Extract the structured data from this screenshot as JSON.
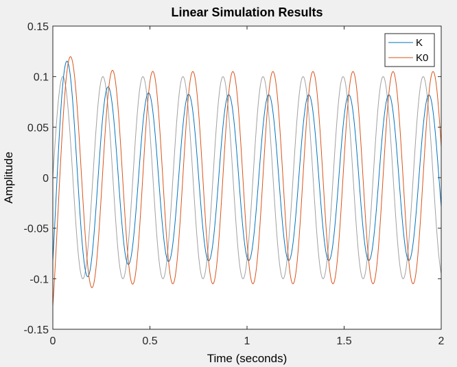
{
  "chart_data": {
    "type": "line",
    "title": "Linear Simulation Results",
    "xlabel": "Time (seconds)",
    "ylabel": "Amplitude",
    "xlim": [
      0,
      2
    ],
    "ylim": [
      -0.15,
      0.15
    ],
    "xticks": [
      0,
      0.5,
      1,
      1.5,
      2
    ],
    "xtick_labels": [
      "0",
      "0.5",
      "1",
      "1.5",
      "2"
    ],
    "yticks": [
      0.15,
      0.1,
      0.05,
      0,
      -0.05,
      -0.1,
      -0.15
    ],
    "ytick_labels": [
      "0.15",
      "0.1",
      "0.05",
      "0",
      "-0.05",
      "-0.1",
      "-0.15"
    ],
    "grid": false,
    "legend": {
      "position": "top-right",
      "entries": [
        "K",
        "K0"
      ]
    },
    "series": [
      {
        "name": "",
        "color": "#a0a0a0",
        "role": "input",
        "model": {
          "amplitude": 0.1,
          "frequency_hz": 4.85,
          "phase": 0,
          "transient_amp": 0,
          "transient_tau": 0
        },
        "peak": 0.1,
        "trough": -0.1
      },
      {
        "name": "K",
        "color": "#0072bd",
        "model": {
          "amplitude": 0.082,
          "frequency_hz": 4.85,
          "phase": -0.9,
          "lead": -0.3,
          "transient_amp": 0.062,
          "transient_tau": 0.15
        },
        "peak": 0.082,
        "trough": -0.083
      },
      {
        "name": "K0",
        "color": "#d95319",
        "model": {
          "amplitude": 0.105,
          "frequency_hz": 4.85,
          "phase": -1.55,
          "lead": -0.25,
          "transient_amp": 0.09,
          "transient_tau": 0.1
        },
        "peak": 0.105,
        "trough": -0.107
      }
    ]
  }
}
